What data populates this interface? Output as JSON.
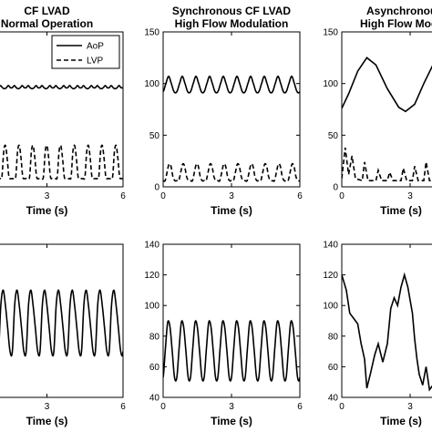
{
  "chart_data": [
    {
      "type": "line",
      "title": [
        "CF LVAD",
        "Normal Operation"
      ],
      "xlabel": "Time (s)",
      "xlim": [
        0,
        6
      ],
      "ylim": [
        0,
        150
      ],
      "xticks": [
        "3",
        "6"
      ],
      "yticks": [],
      "legend": {
        "placement": "top-right",
        "entries": [
          "AoP",
          "LVP"
        ]
      },
      "series": [
        {
          "name": "AoP",
          "style": "solid",
          "periods": 11,
          "values": [
            96,
            98,
            96,
            95,
            96,
            98,
            96
          ]
        },
        {
          "name": "LVP",
          "style": "dashed",
          "periods": 11,
          "values": [
            8,
            8,
            10,
            34,
            40,
            28,
            10,
            8
          ]
        }
      ]
    },
    {
      "type": "line",
      "title": [
        "Synchronous CF LVAD",
        "High Flow Modulation"
      ],
      "xlabel": "Time (s)",
      "xlim": [
        0,
        6
      ],
      "ylim": [
        0,
        150
      ],
      "xticks": [
        "0",
        "3",
        "6"
      ],
      "yticks": [
        "0",
        "50",
        "100",
        "150"
      ],
      "series": [
        {
          "name": "AoP",
          "style": "solid",
          "periods": 10,
          "values": [
            92,
            100,
            107,
            100,
            92
          ]
        },
        {
          "name": "LVP",
          "style": "dashed",
          "periods": 10,
          "values": [
            6,
            6,
            14,
            22,
            20,
            10,
            6
          ]
        }
      ]
    },
    {
      "type": "line",
      "title": [
        "Asynchronous C",
        "High Flow Modulati"
      ],
      "xlabel": "Time (s)",
      "xlim": [
        0,
        6
      ],
      "ylim": [
        0,
        150
      ],
      "xticks": [
        "0",
        "3"
      ],
      "yticks": [
        "0",
        "50",
        "100",
        "150"
      ],
      "series": [
        {
          "name": "AoP",
          "style": "solid",
          "points": [
            [
              0,
              76
            ],
            [
              0.3,
              90
            ],
            [
              0.7,
              112
            ],
            [
              1.1,
              125
            ],
            [
              1.5,
              118
            ],
            [
              2.0,
              95
            ],
            [
              2.5,
              77
            ],
            [
              2.8,
              73
            ],
            [
              3.2,
              80
            ],
            [
              3.6,
              100
            ],
            [
              4.0,
              118
            ]
          ]
        },
        {
          "name": "LVP",
          "style": "dashed",
          "points": [
            [
              0,
              8
            ],
            [
              0.15,
              38
            ],
            [
              0.3,
              12
            ],
            [
              0.45,
              30
            ],
            [
              0.6,
              8
            ],
            [
              0.9,
              6
            ],
            [
              1.0,
              24
            ],
            [
              1.15,
              6
            ],
            [
              1.5,
              6
            ],
            [
              1.6,
              16
            ],
            [
              1.75,
              6
            ],
            [
              2.0,
              6
            ],
            [
              2.1,
              14
            ],
            [
              2.25,
              6
            ],
            [
              2.6,
              6
            ],
            [
              2.7,
              18
            ],
            [
              2.85,
              6
            ],
            [
              3.1,
              6
            ],
            [
              3.2,
              20
            ],
            [
              3.35,
              6
            ],
            [
              3.6,
              6
            ],
            [
              3.7,
              24
            ],
            [
              3.85,
              6
            ],
            [
              4.0,
              6
            ]
          ]
        }
      ]
    },
    {
      "type": "line",
      "title": [],
      "xlabel": "Time (s)",
      "xlim": [
        0,
        6
      ],
      "ylim": [
        40,
        140
      ],
      "xticks": [
        "3",
        "6"
      ],
      "yticks": [],
      "series": [
        {
          "name": "",
          "style": "solid",
          "periods": 11,
          "values": [
            70,
            100,
            110,
            100,
            85,
            70
          ]
        }
      ]
    },
    {
      "type": "line",
      "title": [],
      "xlabel": "Time (s)",
      "xlim": [
        0,
        6
      ],
      "ylim": [
        40,
        140
      ],
      "xticks": [
        "0",
        "3",
        "6"
      ],
      "yticks": [
        "40",
        "60",
        "80",
        "100",
        "120",
        "140"
      ],
      "series": [
        {
          "name": "",
          "style": "solid",
          "periods": 10,
          "values": [
            53,
            72,
            89,
            86,
            70,
            53
          ]
        }
      ]
    },
    {
      "type": "line",
      "title": [],
      "xlabel": "Time (s)",
      "xlim": [
        0,
        6
      ],
      "ylim": [
        40,
        140
      ],
      "xticks": [
        "0",
        "3"
      ],
      "yticks": [
        "40",
        "60",
        "80",
        "100",
        "120",
        "140"
      ],
      "series": [
        {
          "name": "",
          "style": "solid",
          "points": [
            [
              0,
              120
            ],
            [
              0.2,
              110
            ],
            [
              0.35,
              95
            ],
            [
              0.5,
              92
            ],
            [
              0.7,
              88
            ],
            [
              0.85,
              75
            ],
            [
              1.0,
              65
            ],
            [
              1.1,
              46
            ],
            [
              1.25,
              55
            ],
            [
              1.45,
              68
            ],
            [
              1.6,
              75
            ],
            [
              1.8,
              63
            ],
            [
              2.0,
              75
            ],
            [
              2.15,
              98
            ],
            [
              2.3,
              105
            ],
            [
              2.45,
              100
            ],
            [
              2.6,
              112
            ],
            [
              2.75,
              120
            ],
            [
              2.9,
              112
            ],
            [
              3.1,
              95
            ],
            [
              3.2,
              78
            ],
            [
              3.3,
              65
            ],
            [
              3.4,
              55
            ],
            [
              3.55,
              48
            ],
            [
              3.7,
              60
            ],
            [
              3.85,
              45
            ],
            [
              4.0,
              48
            ]
          ]
        }
      ]
    }
  ]
}
